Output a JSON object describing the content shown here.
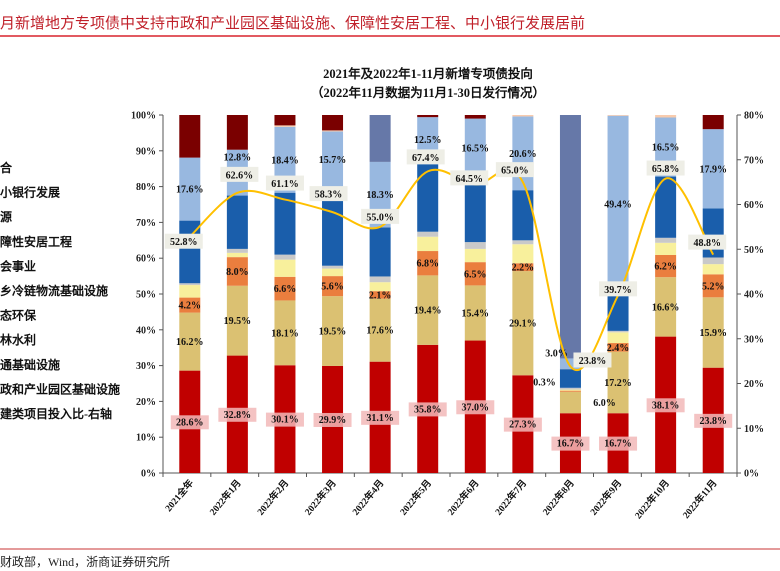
{
  "header": {
    "title": "月新增地方专项债中支持市政和产业园区基础设施、保障性安居工程、中小银行发展居前",
    "source": "财政部，Wind，浙商证券研究所"
  },
  "chart_data": {
    "type": "bar",
    "stacked": true,
    "title": "2021年及2022年1-11月新增专项债投向",
    "subtitle": "（2022年11月数据为11月1-30日发行情况）",
    "categories": [
      "2021全年",
      "2022年1月",
      "2022年2月",
      "2022年3月",
      "2022年4月",
      "2022年5月",
      "2022年6月",
      "2022年7月",
      "2022年8月",
      "2022年9月",
      "2022年10月",
      "2022年11月"
    ],
    "y_left": {
      "min": 0,
      "max": 100,
      "ticks": [
        "0%",
        "10%",
        "20%",
        "30%",
        "40%",
        "50%",
        "60%",
        "70%",
        "80%",
        "90%",
        "100%"
      ]
    },
    "y_right": {
      "min": 0,
      "max": 80,
      "ticks": [
        "0%",
        "10%",
        "20%",
        "30%",
        "40%",
        "50%",
        "60%",
        "70%",
        "80%"
      ]
    },
    "legend_position": "left",
    "grid": false,
    "series": [
      {
        "name": "政和产业园区基础设施",
        "color": "#C00000",
        "labeled": true,
        "values": [
          28.6,
          32.8,
          30.1,
          29.9,
          31.1,
          35.8,
          37.0,
          27.3,
          16.7,
          16.7,
          38.1,
          23.8
        ]
      },
      {
        "name": "通基础设施",
        "color": "#DBC172",
        "labeled": true,
        "values": [
          16.2,
          19.5,
          18.1,
          19.5,
          17.6,
          19.4,
          15.4,
          29.1,
          6.0,
          17.2,
          16.6,
          15.9
        ]
      },
      {
        "name": "林水利",
        "color": "#EA7E3E",
        "labeled": true,
        "values": [
          4.2,
          8.0,
          6.6,
          5.6,
          2.1,
          6.8,
          6.5,
          2.2,
          0.3,
          2.4,
          6.2,
          5.2
        ]
      },
      {
        "name": "态环保",
        "color": "#F8F09C",
        "labeled": false,
        "values": [
          3.5,
          1.2,
          4.8,
          2.1,
          2.5,
          4.0,
          3.7,
          5.3,
          0.3,
          3.0,
          3.4,
          2.3
        ]
      },
      {
        "name": "乡冷链物流基础设施",
        "color": "#C9C9C9",
        "labeled": false,
        "values": [
          0.5,
          1.1,
          1.4,
          0.8,
          1.6,
          1.4,
          1.9,
          1.1,
          0.5,
          0.4,
          1.4,
          1.5
        ]
      },
      {
        "name": "会事业",
        "color": "#1A5EAB",
        "labeled": false,
        "values": [
          17.5,
          14.9,
          17.3,
          21.8,
          13.7,
          19.5,
          18.0,
          14.0,
          5.2,
          10.7,
          17.1,
          11.1
        ]
      },
      {
        "name": "障性安居工程",
        "color": "#98B8E0",
        "labeled": true,
        "values": [
          17.6,
          12.8,
          18.4,
          15.7,
          18.3,
          12.5,
          16.5,
          20.6,
          3.0,
          49.4,
          16.5,
          17.9
        ]
      },
      {
        "name": "源",
        "color": "#F8CBAD",
        "labeled": false,
        "values": [
          0,
          0,
          0.4,
          0.3,
          0,
          0,
          0,
          0.4,
          0,
          0.2,
          0.7,
          0
        ]
      },
      {
        "name": "小银行发展",
        "color": "#6678A8",
        "labeled": false,
        "values": [
          0,
          0,
          0,
          0,
          13.1,
          0,
          0,
          0,
          68.0,
          0,
          0,
          0
        ]
      },
      {
        "name": "合",
        "color": "#7A0000",
        "labeled": false,
        "values": [
          11.9,
          9.7,
          2.9,
          4.3,
          0,
          0.6,
          1.0,
          0,
          0,
          0,
          0,
          3.2
        ]
      }
    ],
    "line": {
      "name": "建类项目投入比-右轴",
      "color": "#FFC000",
      "axis": "right",
      "values": [
        52.8,
        62.6,
        61.1,
        58.3,
        55.0,
        67.4,
        64.5,
        65.0,
        23.8,
        39.7,
        65.8,
        48.8
      ],
      "labels": [
        "52.8%",
        "62.6%",
        "61.1%",
        "58.3%",
        "55.0%",
        "67.4%",
        "64.5%",
        "65.0%",
        "23.8%",
        "39.7%",
        "65.8%",
        "48.8%"
      ]
    }
  }
}
